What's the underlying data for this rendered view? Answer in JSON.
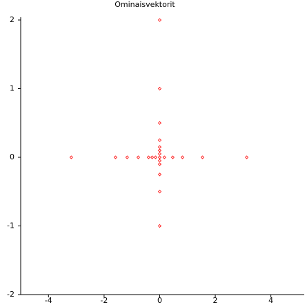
{
  "chart_data": {
    "type": "scatter",
    "title": "Ominaisvektorit",
    "x": [
      -3.18,
      -1.59,
      -1.17,
      -0.77,
      -0.4,
      -0.27,
      -0.15,
      0,
      0.17,
      0.47,
      0.82,
      1.54,
      3.13,
      0,
      0,
      0,
      0,
      0,
      0,
      0,
      0,
      0,
      0,
      0,
      0
    ],
    "values": [
      0,
      0,
      0,
      0,
      0,
      0,
      0,
      0,
      0,
      0,
      0,
      0,
      0,
      2,
      1,
      0.5,
      0.25,
      0.1,
      0.05,
      -0.05,
      -0.1,
      -0.25,
      -0.5,
      -1,
      0.15
    ],
    "color": "#ff0000",
    "xlim": [
      -5,
      5.2
    ],
    "ylim": [
      -2,
      2
    ],
    "xticks": [
      -4,
      -2,
      0,
      2,
      4
    ],
    "yticks": [
      -2,
      -1,
      0,
      1,
      2
    ]
  }
}
